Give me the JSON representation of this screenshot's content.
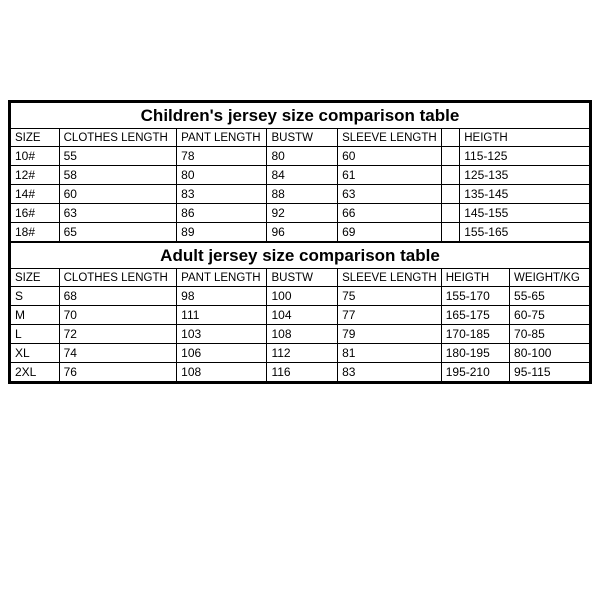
{
  "styling": {
    "border_color": "#000000",
    "background_color": "#ffffff",
    "font_family": "Arial",
    "title_fontsize": 17,
    "cell_fontsize": 12,
    "header_fontsize": 11.5
  },
  "children_table": {
    "title": "Children's jersey size comparison table",
    "columns": [
      "SIZE",
      "CLOTHES LENGTH",
      "PANT LENGTH",
      "BUSTW",
      "SLEEVE LENGTH",
      "",
      "HEIGTH"
    ],
    "col_widths_pct": [
      8.4,
      20.3,
      15.6,
      12.2,
      17.9,
      3.2,
      22.4
    ],
    "rows": [
      [
        "10#",
        "55",
        "78",
        "80",
        "60",
        "",
        "115-125"
      ],
      [
        "12#",
        "58",
        "80",
        "84",
        "61",
        "",
        "125-135"
      ],
      [
        "14#",
        "60",
        "83",
        "88",
        "63",
        "",
        "135-145"
      ],
      [
        "16#",
        "63",
        "86",
        "92",
        "66",
        "",
        "145-155"
      ],
      [
        "18#",
        "65",
        "89",
        "96",
        "69",
        "",
        "155-165"
      ]
    ]
  },
  "adult_table": {
    "title": "Adult jersey size comparison table",
    "columns": [
      "SIZE",
      "CLOTHES LENGTH",
      "PANT LENGTH",
      "BUSTW",
      "SLEEVE LENGTH",
      "HEIGTH",
      "WEIGHT/KG"
    ],
    "col_widths_pct": [
      8.4,
      20.3,
      15.6,
      12.2,
      17.9,
      11.8,
      13.8
    ],
    "rows": [
      [
        "S",
        "68",
        "98",
        "100",
        "75",
        "155-170",
        "55-65"
      ],
      [
        "M",
        "70",
        "111",
        "104",
        "77",
        "165-175",
        "60-75"
      ],
      [
        "L",
        "72",
        "103",
        "108",
        "79",
        "170-185",
        "70-85"
      ],
      [
        "XL",
        "74",
        "106",
        "112",
        "81",
        "180-195",
        "80-100"
      ],
      [
        "2XL",
        "76",
        "108",
        "116",
        "83",
        "195-210",
        "95-115"
      ]
    ]
  }
}
